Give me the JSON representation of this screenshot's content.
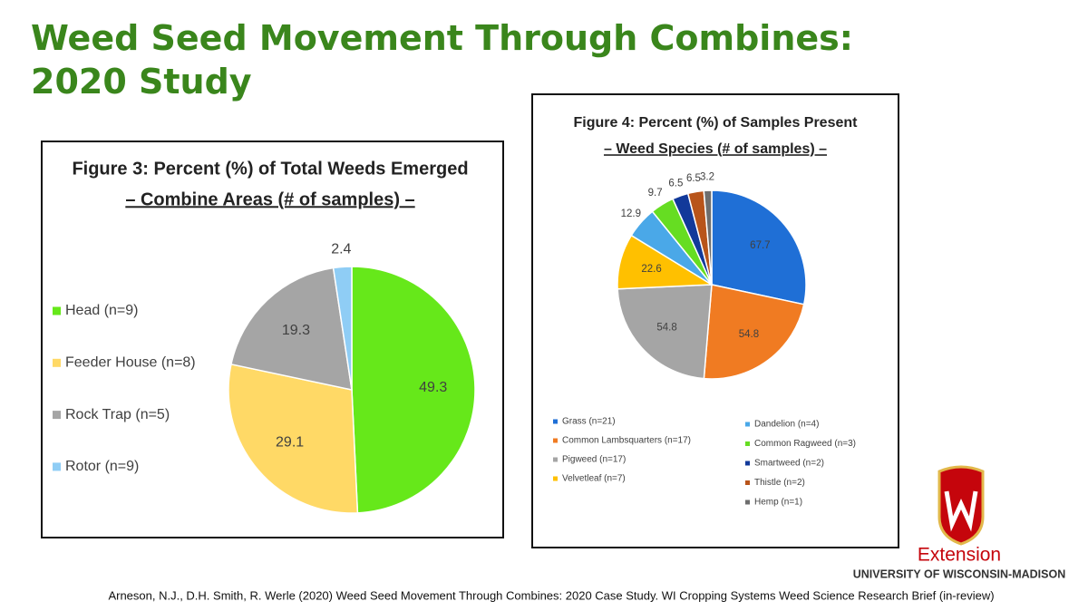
{
  "slide_title": "Weed Seed Movement Through Combines: 2020 Study",
  "chart_data": [
    {
      "type": "pie",
      "title": "Figure 3: Percent (%) of Total Weeds Emerged",
      "subtitle": "– Combine Areas (# of samples) –",
      "categories": [
        "Head (n=9)",
        "Feeder House (n=8)",
        "Rock Trap (n=5)",
        "Rotor (n=9)"
      ],
      "values": [
        49.3,
        29.1,
        19.3,
        2.4
      ],
      "colors": [
        "#66e81a",
        "#ffd966",
        "#a5a5a5",
        "#8fcdf5"
      ],
      "legend": "left"
    },
    {
      "type": "pie",
      "title": "Figure 4: Percent (%) of Samples Present",
      "subtitle": "– Weed Species (# of samples) –",
      "categories": [
        "Grass (n=21)",
        "Common Lambsquarters (n=17)",
        "Pigweed (n=17)",
        "Velvetleaf (n=7)",
        "Dandelion (n=4)",
        "Common Ragweed (n=3)",
        "Smartweed (n=2)",
        "Thistle (n=2)",
        "Hemp (n=1)"
      ],
      "values": [
        67.7,
        54.8,
        54.8,
        22.6,
        12.9,
        9.7,
        6.5,
        6.5,
        3.2
      ],
      "colors": [
        "#1f6fd6",
        "#f07b22",
        "#a5a5a5",
        "#ffc000",
        "#4aa8e8",
        "#66dd22",
        "#12399a",
        "#b8541a",
        "#6e6e6e"
      ],
      "legend": "bottom"
    }
  ],
  "logo": {
    "name": "Extension",
    "institution": "UNIVERSITY OF WISCONSIN-MADISON"
  },
  "citation": "Arneson, N.J., D.H. Smith, R. Werle (2020) Weed Seed Movement Through Combines: 2020 Case Study. WI Cropping Systems Weed Science Research Brief (in-review)"
}
